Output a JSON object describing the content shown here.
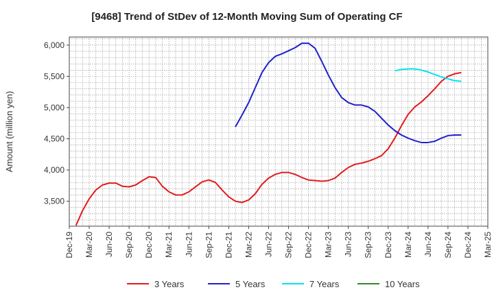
{
  "chart_data": {
    "type": "line",
    "title": "[9468]  Trend of StDev of 12-Month Moving Sum of Operating CF",
    "ylabel": "Amount (million yen)",
    "xlabel": "",
    "ylim": [
      3100,
      6130
    ],
    "yticks": [
      3500,
      4000,
      4500,
      5000,
      5500,
      6000
    ],
    "ytick_labels": [
      "3,500",
      "4,000",
      "4,500",
      "5,000",
      "5,500",
      "6,000"
    ],
    "x_start": "Dec-19",
    "x_ticks": [
      "Dec-19",
      "Mar-20",
      "Jun-20",
      "Sep-20",
      "Dec-20",
      "Mar-21",
      "Jun-21",
      "Sep-21",
      "Dec-21",
      "Mar-22",
      "Jun-22",
      "Sep-22",
      "Dec-22",
      "Mar-23",
      "Jun-23",
      "Sep-23",
      "Dec-23",
      "Mar-24",
      "Jun-24",
      "Sep-24",
      "Dec-24",
      "Mar-25"
    ],
    "grid": true,
    "legend_position": "bottom",
    "series": [
      {
        "name": "3 Years",
        "color": "#e31a1c",
        "start": "Jan-20",
        "values": [
          3110,
          3350,
          3540,
          3680,
          3760,
          3790,
          3790,
          3740,
          3730,
          3760,
          3830,
          3890,
          3880,
          3740,
          3650,
          3600,
          3600,
          3650,
          3730,
          3810,
          3840,
          3800,
          3680,
          3570,
          3500,
          3480,
          3520,
          3620,
          3770,
          3870,
          3930,
          3960,
          3960,
          3930,
          3880,
          3840,
          3830,
          3820,
          3830,
          3870,
          3960,
          4040,
          4090,
          4110,
          4140,
          4180,
          4230,
          4340,
          4510,
          4710,
          4890,
          5010,
          5090,
          5190,
          5300,
          5420,
          5500,
          5540,
          5560
        ]
      },
      {
        "name": "5 Years",
        "color": "#1f1fcc",
        "start": "Jan-22",
        "values": [
          4690,
          4880,
          5080,
          5320,
          5560,
          5720,
          5820,
          5860,
          5910,
          5960,
          6030,
          6030,
          5950,
          5740,
          5520,
          5320,
          5160,
          5080,
          5040,
          5040,
          5010,
          4940,
          4830,
          4720,
          4630,
          4560,
          4510,
          4470,
          4440,
          4440,
          4460,
          4510,
          4550,
          4560,
          4560
        ]
      },
      {
        "name": "7 Years",
        "color": "#00e5ee",
        "start": "Jan-24",
        "values": [
          5590,
          5610,
          5620,
          5620,
          5600,
          5570,
          5530,
          5490,
          5460,
          5430,
          5420
        ]
      },
      {
        "name": "10 Years",
        "color": "#2e8b22",
        "start": "",
        "values": []
      }
    ]
  }
}
